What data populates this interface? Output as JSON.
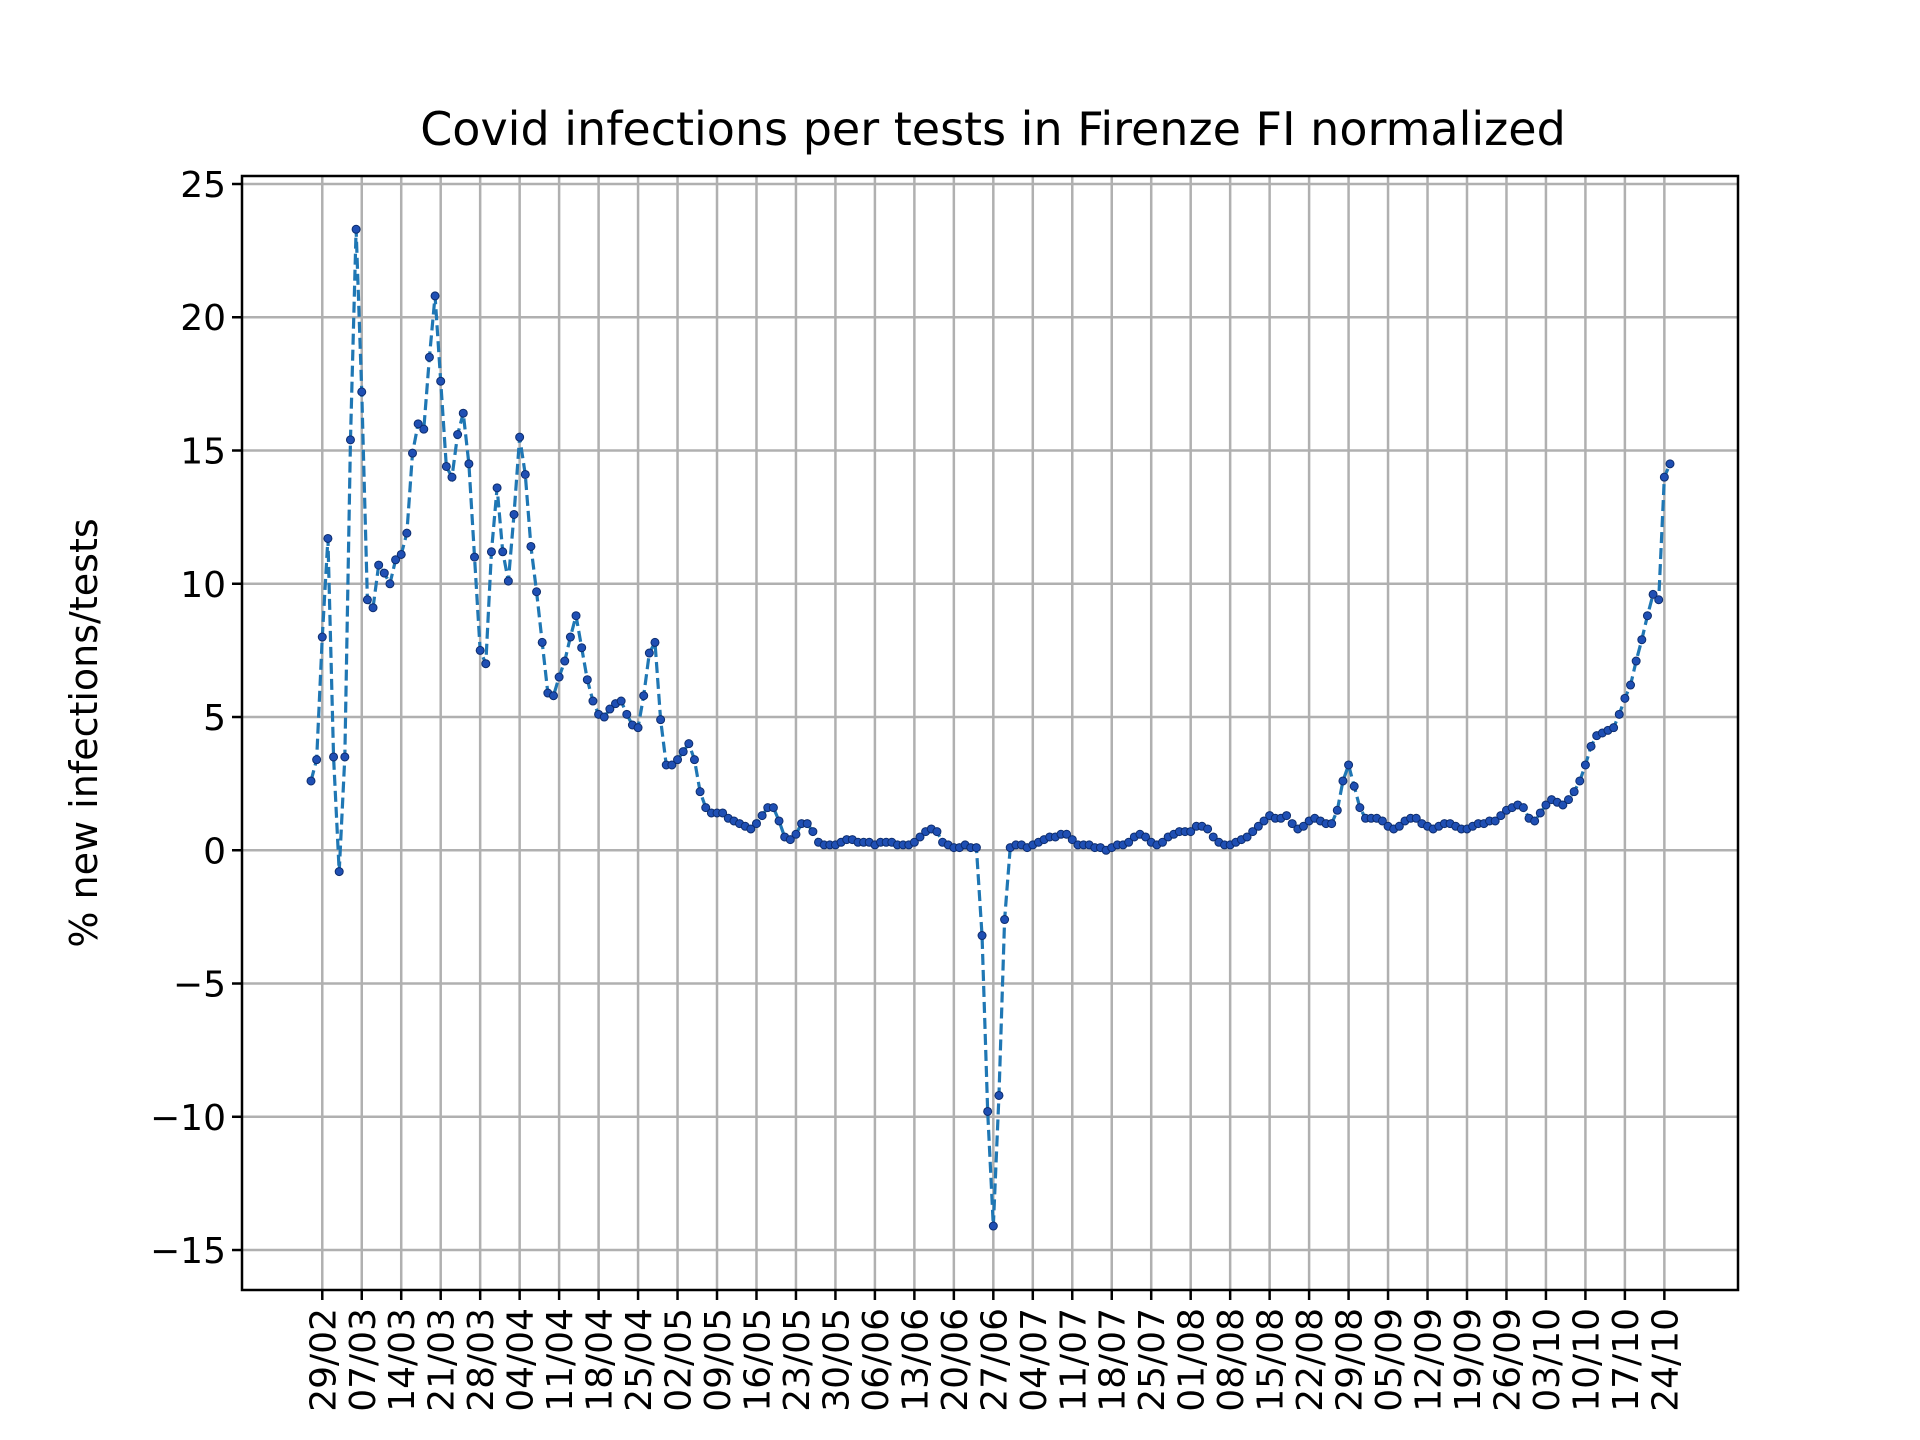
{
  "chart_data": {
    "type": "line",
    "title": "Covid infections per tests in Firenze FI normalized",
    "xlabel": "",
    "ylabel": "% new infections/tests",
    "ylim": [
      -16.5,
      25.3
    ],
    "yticks": [
      -15,
      -10,
      -5,
      0,
      5,
      10,
      15,
      20,
      25
    ],
    "ytick_labels": [
      "−15",
      "−10",
      "−5",
      "0",
      "5",
      "10",
      "15",
      "20",
      "25"
    ],
    "xticks": [
      "29/02",
      "07/03",
      "14/03",
      "21/03",
      "28/03",
      "04/04",
      "11/04",
      "18/04",
      "25/04",
      "02/05",
      "09/05",
      "16/05",
      "23/05",
      "30/05",
      "06/06",
      "13/06",
      "20/06",
      "27/06",
      "04/07",
      "11/07",
      "18/07",
      "25/07",
      "01/08",
      "08/08",
      "15/08",
      "22/08",
      "29/08",
      "05/09",
      "12/09",
      "19/09",
      "26/09",
      "03/10",
      "10/10",
      "17/10",
      "24/10"
    ],
    "x_start": "27/02",
    "grid": true,
    "series": [
      {
        "color": "#1f77b4",
        "linestyle": "dashed",
        "marker": "dot",
        "values": [
          2.6,
          3.4,
          8.0,
          11.7,
          3.5,
          -0.8,
          3.5,
          15.4,
          23.3,
          17.2,
          9.4,
          9.1,
          10.7,
          10.4,
          10.0,
          10.9,
          11.1,
          11.9,
          14.9,
          16.0,
          15.8,
          18.5,
          20.8,
          17.6,
          14.4,
          14.0,
          15.6,
          16.4,
          14.5,
          11.0,
          7.5,
          7.0,
          11.2,
          13.6,
          11.2,
          10.1,
          12.6,
          15.5,
          14.1,
          11.4,
          9.7,
          7.8,
          5.9,
          5.8,
          6.5,
          7.1,
          8.0,
          8.8,
          7.6,
          6.4,
          5.6,
          5.1,
          5.0,
          5.3,
          5.5,
          5.6,
          5.1,
          4.7,
          4.6,
          5.8,
          7.4,
          7.8,
          4.9,
          3.2,
          3.2,
          3.4,
          3.7,
          4.0,
          3.4,
          2.2,
          1.6,
          1.4,
          1.4,
          1.4,
          1.2,
          1.1,
          1.0,
          0.9,
          0.8,
          1.0,
          1.3,
          1.6,
          1.6,
          1.1,
          0.5,
          0.4,
          0.6,
          1.0,
          1.0,
          0.7,
          0.3,
          0.2,
          0.2,
          0.2,
          0.3,
          0.4,
          0.4,
          0.3,
          0.3,
          0.3,
          0.2,
          0.3,
          0.3,
          0.3,
          0.2,
          0.2,
          0.2,
          0.3,
          0.5,
          0.7,
          0.8,
          0.7,
          0.3,
          0.2,
          0.1,
          0.1,
          0.2,
          0.1,
          0.1,
          -3.2,
          -9.8,
          -14.1,
          -9.2,
          -2.6,
          0.1,
          0.2,
          0.2,
          0.1,
          0.2,
          0.3,
          0.4,
          0.5,
          0.5,
          0.6,
          0.6,
          0.4,
          0.2,
          0.2,
          0.2,
          0.1,
          0.1,
          0.0,
          0.1,
          0.2,
          0.2,
          0.3,
          0.5,
          0.6,
          0.5,
          0.3,
          0.2,
          0.3,
          0.5,
          0.6,
          0.7,
          0.7,
          0.7,
          0.9,
          0.9,
          0.8,
          0.5,
          0.3,
          0.2,
          0.2,
          0.3,
          0.4,
          0.5,
          0.7,
          0.9,
          1.1,
          1.3,
          1.2,
          1.2,
          1.3,
          1.0,
          0.8,
          0.9,
          1.1,
          1.2,
          1.1,
          1.0,
          1.0,
          1.5,
          2.6,
          3.2,
          2.4,
          1.6,
          1.2,
          1.2,
          1.2,
          1.1,
          0.9,
          0.8,
          0.9,
          1.1,
          1.2,
          1.2,
          1.0,
          0.9,
          0.8,
          0.9,
          1.0,
          1.0,
          0.9,
          0.8,
          0.8,
          0.9,
          1.0,
          1.0,
          1.1,
          1.1,
          1.3,
          1.5,
          1.6,
          1.7,
          1.6,
          1.2,
          1.1,
          1.4,
          1.7,
          1.9,
          1.8,
          1.7,
          1.9,
          2.2,
          2.6,
          3.2,
          3.9,
          4.3,
          4.4,
          4.5,
          4.6,
          5.1,
          5.7,
          6.2,
          7.1,
          7.9,
          8.8,
          9.6,
          9.4,
          14.0,
          14.5
        ]
      }
    ]
  }
}
